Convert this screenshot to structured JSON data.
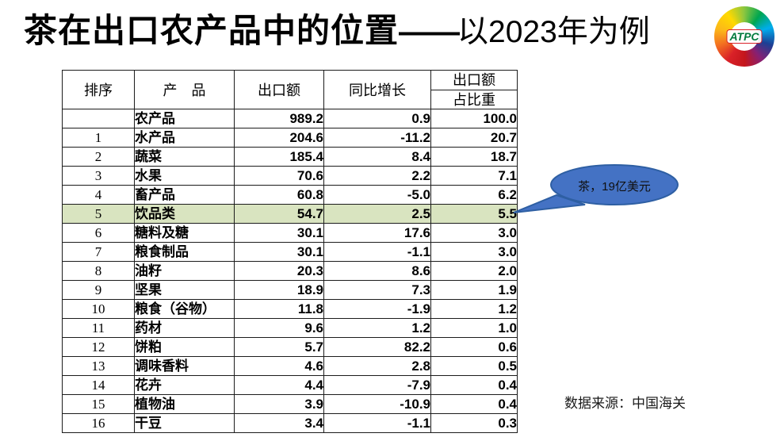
{
  "slide": {
    "title_main": "茶在出口农产品中的位置",
    "title_dash": "——",
    "title_sub": "以2023年为例",
    "logo_text": "ATPC",
    "callout_label": "茶，19亿美元",
    "source_label": "数据来源：中国海关"
  },
  "table": {
    "headers": [
      "排序",
      "产　品",
      "出口额",
      "同比增长"
    ],
    "last_header": {
      "top": "出口额",
      "bottom": "占比重"
    },
    "rows": [
      {
        "rank": "",
        "product": "农产品",
        "export": "989.2",
        "yoy": "0.9",
        "share": "100.0",
        "highlight": false
      },
      {
        "rank": "1",
        "product": "水产品",
        "export": "204.6",
        "yoy": "-11.2",
        "share": "20.7",
        "highlight": false
      },
      {
        "rank": "2",
        "product": "蔬菜",
        "export": "185.4",
        "yoy": "8.4",
        "share": "18.7",
        "highlight": false
      },
      {
        "rank": "3",
        "product": "水果",
        "export": "70.6",
        "yoy": "2.2",
        "share": "7.1",
        "highlight": false
      },
      {
        "rank": "4",
        "product": "畜产品",
        "export": "60.8",
        "yoy": "-5.0",
        "share": "6.2",
        "highlight": false
      },
      {
        "rank": "5",
        "product": "饮品类",
        "export": "54.7",
        "yoy": "2.5",
        "share": "5.5",
        "highlight": true
      },
      {
        "rank": "6",
        "product": "糖料及糖",
        "export": "30.1",
        "yoy": "17.6",
        "share": "3.0",
        "highlight": false
      },
      {
        "rank": "7",
        "product": "粮食制品",
        "export": "30.1",
        "yoy": "-1.1",
        "share": "3.0",
        "highlight": false
      },
      {
        "rank": "8",
        "product": "油籽",
        "export": "20.3",
        "yoy": "8.6",
        "share": "2.0",
        "highlight": false
      },
      {
        "rank": "9",
        "product": "坚果",
        "export": "18.9",
        "yoy": "7.3",
        "share": "1.9",
        "highlight": false
      },
      {
        "rank": "10",
        "product": "粮食（谷物）",
        "export": "11.8",
        "yoy": "-1.9",
        "share": "1.2",
        "highlight": false
      },
      {
        "rank": "11",
        "product": "药材",
        "export": "9.6",
        "yoy": "1.2",
        "share": "1.0",
        "highlight": false
      },
      {
        "rank": "12",
        "product": "饼粕",
        "export": "5.7",
        "yoy": "82.2",
        "share": "0.6",
        "highlight": false
      },
      {
        "rank": "13",
        "product": "调味香料",
        "export": "4.6",
        "yoy": "2.8",
        "share": "0.5",
        "highlight": false
      },
      {
        "rank": "14",
        "product": "花卉",
        "export": "4.4",
        "yoy": "-7.9",
        "share": "0.4",
        "highlight": false
      },
      {
        "rank": "15",
        "product": "植物油",
        "export": "3.9",
        "yoy": "-10.9",
        "share": "0.4",
        "highlight": false
      },
      {
        "rank": "16",
        "product": "干豆",
        "export": "3.4",
        "yoy": "-1.1",
        "share": "0.3",
        "highlight": false
      }
    ]
  },
  "colors": {
    "highlight_row": "#d9e4c0",
    "bubble_fill": "#4472c4",
    "bubble_border": "#2e5fa3"
  },
  "chart_data": {
    "type": "table",
    "title": "茶在出口农产品中的位置——以2023年为例",
    "columns": [
      "排序",
      "产品",
      "出口额",
      "同比增长",
      "出口额占比重"
    ],
    "rows": [
      [
        "",
        "农产品",
        989.2,
        0.9,
        100.0
      ],
      [
        "1",
        "水产品",
        204.6,
        -11.2,
        20.7
      ],
      [
        "2",
        "蔬菜",
        185.4,
        8.4,
        18.7
      ],
      [
        "3",
        "水果",
        70.6,
        2.2,
        7.1
      ],
      [
        "4",
        "畜产品",
        60.8,
        -5.0,
        6.2
      ],
      [
        "5",
        "饮品类",
        54.7,
        2.5,
        5.5
      ],
      [
        "6",
        "糖料及糖",
        30.1,
        17.6,
        3.0
      ],
      [
        "7",
        "粮食制品",
        30.1,
        -1.1,
        3.0
      ],
      [
        "8",
        "油籽",
        20.3,
        8.6,
        2.0
      ],
      [
        "9",
        "坚果",
        18.9,
        7.3,
        1.9
      ],
      [
        "10",
        "粮食（谷物）",
        11.8,
        -1.9,
        1.2
      ],
      [
        "11",
        "药材",
        9.6,
        1.2,
        1.0
      ],
      [
        "12",
        "饼粕",
        5.7,
        82.2,
        0.6
      ],
      [
        "13",
        "调味香料",
        4.6,
        2.8,
        0.5
      ],
      [
        "14",
        "花卉",
        4.4,
        -7.9,
        0.4
      ],
      [
        "15",
        "植物油",
        3.9,
        -10.9,
        0.4
      ],
      [
        "16",
        "干豆",
        3.4,
        -1.1,
        0.3
      ]
    ],
    "highlighted_row": "饮品类",
    "annotation": "茶，19亿美元",
    "source": "数据来源：中国海关"
  }
}
